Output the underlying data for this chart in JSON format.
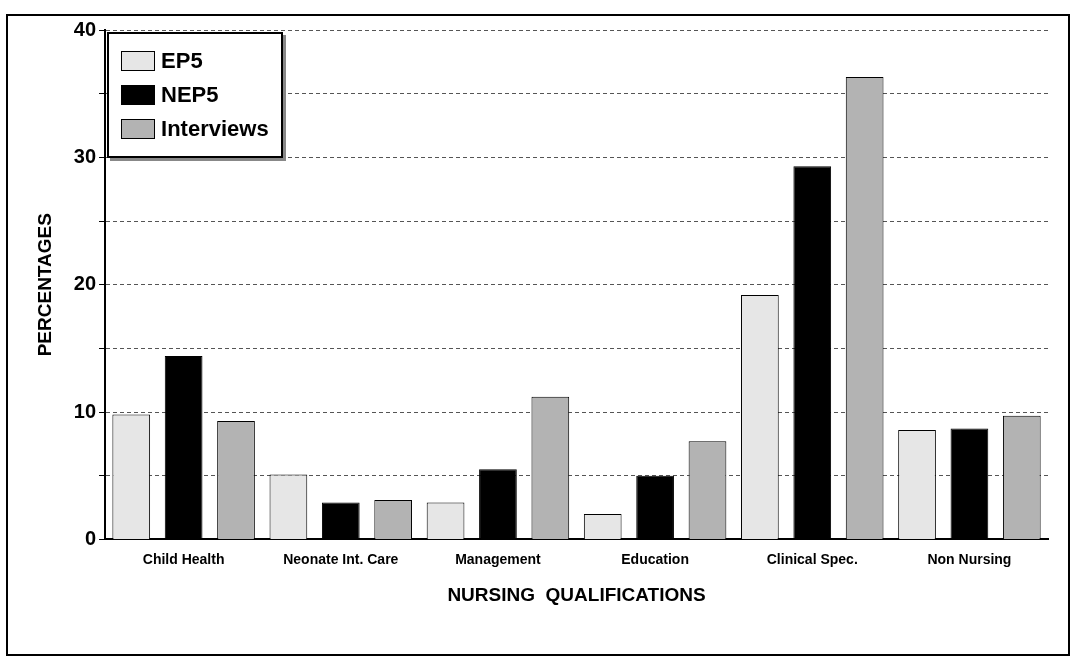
{
  "chart_data": {
    "type": "bar",
    "xlabel": "NURSING  QUALIFICATIONS",
    "ylabel": "PERCENTAGES",
    "categories": [
      "Child Health",
      "Neonate Int. Care",
      "Management",
      "Education",
      "Clinical Spec.",
      "Non Nursing"
    ],
    "series": [
      {
        "name": "EP5",
        "color": "#e6e6e6",
        "values": [
          9.8,
          5.1,
          2.9,
          2.0,
          19.2,
          8.6
        ]
      },
      {
        "name": "NEP5",
        "color": "#000000",
        "values": [
          14.4,
          2.9,
          5.5,
          5.0,
          29.3,
          8.7
        ]
      },
      {
        "name": "Interviews",
        "color": "#b3b3b3",
        "values": [
          9.3,
          3.1,
          11.2,
          7.7,
          36.3,
          9.7
        ]
      }
    ],
    "ylim": [
      0,
      40
    ],
    "yticks": [
      0,
      {
        "value": 5,
        "label": null
      },
      10,
      {
        "value": 15,
        "label": null
      },
      20,
      {
        "value": 25,
        "label": null
      },
      30,
      {
        "value": 35,
        "label": null
      },
      40
    ],
    "grid": "y",
    "legend": "top left"
  }
}
